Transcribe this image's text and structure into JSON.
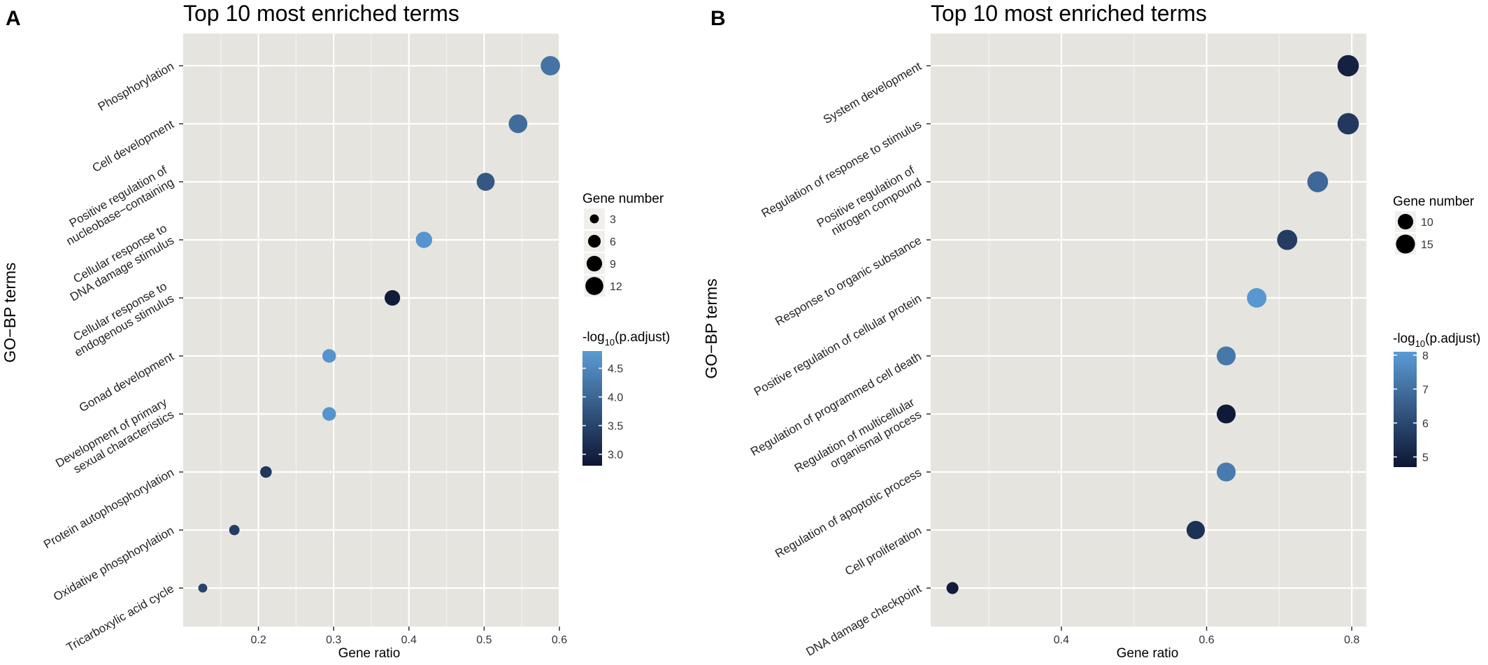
{
  "panels": [
    {
      "label": "A",
      "chart_data": {
        "type": "scatter",
        "title": "Top 10 most enriched terms",
        "xlabel": "Gene ratio",
        "ylabel": "GO−BP terms",
        "xlim": [
          0.1,
          0.6
        ],
        "xticks": [
          0.2,
          0.3,
          0.4,
          0.5,
          0.6
        ],
        "xtick_labels": [
          "0.2",
          "0.3",
          "0.4",
          "0.5",
          "0.6"
        ],
        "grid": true,
        "legend_position": "right",
        "categories": [
          {
            "lines": [
              "Phosphorylation"
            ]
          },
          {
            "lines": [
              "Cell development"
            ]
          },
          {
            "lines": [
              "Positive regulation of",
              "nucleobase−containing"
            ]
          },
          {
            "lines": [
              "Cellular response to",
              "DNA damage stimulus"
            ]
          },
          {
            "lines": [
              "Cellular response to",
              "endogenous stimulus"
            ]
          },
          {
            "lines": [
              "Gonad development"
            ]
          },
          {
            "lines": [
              "Development of primary",
              "sexual characteristics"
            ]
          },
          {
            "lines": [
              "Protein autophosphorylation"
            ]
          },
          {
            "lines": [
              "Oxidative phosphorylation"
            ]
          },
          {
            "lines": [
              "Tricarboxylic acid cycle"
            ]
          }
        ],
        "points": [
          {
            "x": 0.588,
            "count": 14,
            "p": 4.2
          },
          {
            "x": 0.545,
            "count": 13,
            "p": 4.1
          },
          {
            "x": 0.502,
            "count": 12,
            "p": 3.8
          },
          {
            "x": 0.42,
            "count": 10,
            "p": 4.7
          },
          {
            "x": 0.378,
            "count": 9,
            "p": 2.9
          },
          {
            "x": 0.294,
            "count": 7,
            "p": 4.7
          },
          {
            "x": 0.294,
            "count": 7,
            "p": 4.7
          },
          {
            "x": 0.21,
            "count": 5,
            "p": 3.3
          },
          {
            "x": 0.168,
            "count": 4,
            "p": 3.4
          },
          {
            "x": 0.126,
            "count": 3,
            "p": 3.5
          }
        ],
        "size_legend": {
          "title": "Gene number",
          "values": [
            3,
            6,
            9,
            12
          ],
          "labels": [
            "3",
            "6",
            "9",
            "12"
          ]
        },
        "color_legend": {
          "title_prefix": "-log",
          "title_sub": "10",
          "title_suffix": "(p.adjust)",
          "range": [
            2.8,
            4.8
          ],
          "ticks": [
            3.0,
            3.5,
            4.0,
            4.5
          ],
          "tick_labels": [
            "3.0",
            "3.5",
            "4.0",
            "4.5"
          ],
          "low_color": "#0d1533",
          "high_color": "#5b9bd5"
        }
      }
    },
    {
      "label": "B",
      "chart_data": {
        "type": "scatter",
        "title": "Top 10 most enriched terms",
        "xlabel": "Gene ratio",
        "ylabel": "GO−BP terms",
        "xlim": [
          0.22,
          0.82
        ],
        "xticks": [
          0.4,
          0.6,
          0.8
        ],
        "xtick_labels": [
          "0.4",
          "0.6",
          "0.8"
        ],
        "grid": true,
        "legend_position": "right",
        "categories": [
          {
            "lines": [
              "System development"
            ]
          },
          {
            "lines": [
              "Regulation of response to stimulus"
            ]
          },
          {
            "lines": [
              "Positive regulation of",
              "nitrogen compound"
            ]
          },
          {
            "lines": [
              "Response to organic substance"
            ]
          },
          {
            "lines": [
              "Positive regulation of cellular protein"
            ]
          },
          {
            "lines": [
              "Regulation of programmed cell death"
            ]
          },
          {
            "lines": [
              "Regulation of multicellular",
              "organismal process"
            ]
          },
          {
            "lines": [
              "Regulation of apoptotic process"
            ]
          },
          {
            "lines": [
              "Cell proliferation"
            ]
          },
          {
            "lines": [
              "DNA damage checkpoint"
            ]
          }
        ],
        "points": [
          {
            "x": 0.795,
            "count": 19,
            "p": 5.0
          },
          {
            "x": 0.795,
            "count": 19,
            "p": 5.6
          },
          {
            "x": 0.753,
            "count": 18,
            "p": 6.8
          },
          {
            "x": 0.711,
            "count": 17,
            "p": 5.7
          },
          {
            "x": 0.669,
            "count": 16,
            "p": 8.0
          },
          {
            "x": 0.627,
            "count": 15,
            "p": 7.2
          },
          {
            "x": 0.627,
            "count": 15,
            "p": 4.8
          },
          {
            "x": 0.627,
            "count": 15,
            "p": 7.3
          },
          {
            "x": 0.585,
            "count": 14,
            "p": 5.4
          },
          {
            "x": 0.25,
            "count": 6,
            "p": 4.9
          }
        ],
        "size_legend": {
          "title": "Gene number",
          "values": [
            10,
            15
          ],
          "labels": [
            "10",
            "15"
          ]
        },
        "color_legend": {
          "title_prefix": "-log",
          "title_sub": "10",
          "title_suffix": "(p.adjust)",
          "range": [
            4.7,
            8.1
          ],
          "ticks": [
            5,
            6,
            7,
            8
          ],
          "tick_labels": [
            "5",
            "6",
            "7",
            "8"
          ],
          "low_color": "#0d1533",
          "high_color": "#5b9bd5"
        }
      }
    }
  ]
}
